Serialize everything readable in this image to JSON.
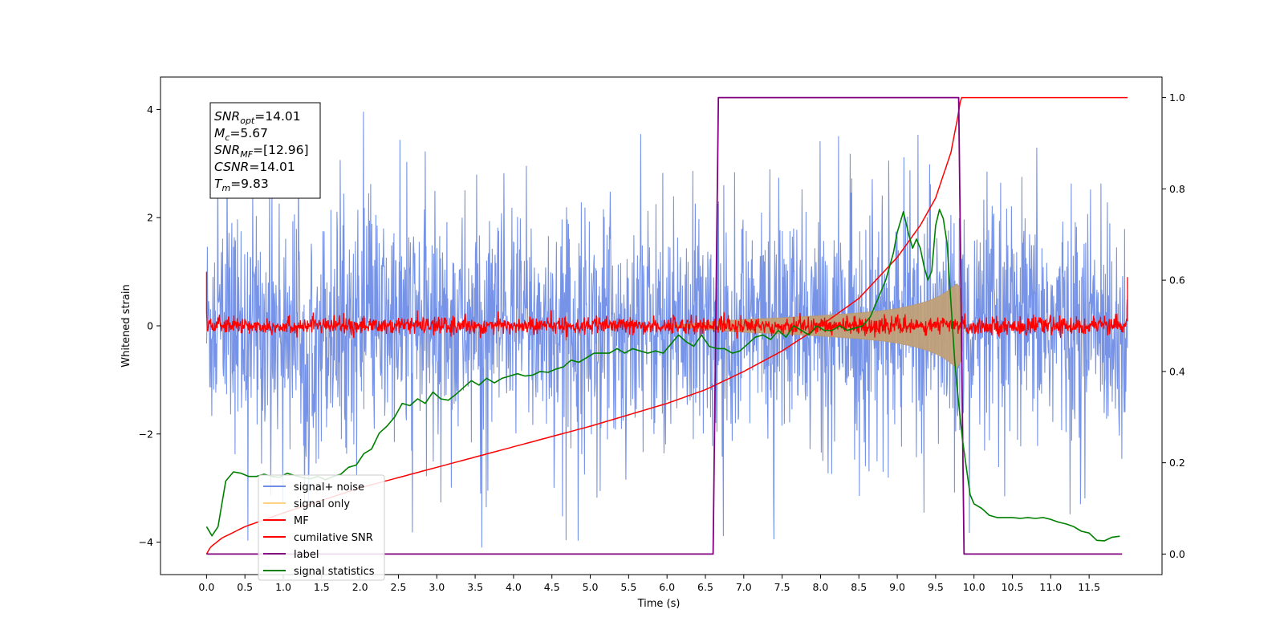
{
  "chart_data": {
    "type": "line",
    "xlabel": "Time (s)",
    "ylabel": "Whitened strain",
    "x_ticks": [
      0.0,
      0.5,
      1.0,
      1.5,
      2.0,
      2.5,
      3.0,
      3.5,
      4.0,
      4.5,
      5.0,
      5.5,
      6.0,
      6.5,
      7.0,
      7.5,
      8.0,
      8.5,
      9.0,
      9.5,
      10.0,
      10.5,
      11.0,
      11.5
    ],
    "x_tick_labels": [
      "0.0",
      "0.5",
      "1.0",
      "1.5",
      "2.0",
      "2.5",
      "3.0",
      "3.5",
      "4.0",
      "4.5",
      "5.0",
      "5.5",
      "6.0",
      "6.5",
      "7.0",
      "7.5",
      "8.0",
      "8.5",
      "9.0",
      "9.5",
      "10.0",
      "10.5",
      "11.0",
      "11.5"
    ],
    "xlim": [
      -0.6,
      12.45
    ],
    "ylim_left": [
      -4.6,
      4.6
    ],
    "y_ticks_left": [
      -4,
      -2,
      0,
      2,
      4
    ],
    "y_tick_labels_left": [
      "−4",
      "−2",
      "0",
      "2",
      "4"
    ],
    "ylim_right": [
      -0.045,
      1.045
    ],
    "y_ticks_right": [
      0.0,
      0.2,
      0.4,
      0.6,
      0.8,
      1.0
    ],
    "y_tick_labels_right": [
      "0.0",
      "0.2",
      "0.4",
      "0.6",
      "0.8",
      "1.0"
    ],
    "legend_position": "lower-left",
    "series": [
      {
        "name": "signal+ noise",
        "color": "#6f8de6",
        "axis": "left",
        "kind": "noise-band",
        "x_range": [
          0.0,
          12.0
        ],
        "spread": 1.05
      },
      {
        "name": "signal only",
        "color": "#ffd280",
        "axis": "left",
        "kind": "chirp-envelope",
        "envelope": {
          "x": [
            0.0,
            6.0,
            6.6,
            7.0,
            7.5,
            8.0,
            8.5,
            8.8,
            9.0,
            9.2,
            9.4,
            9.55,
            9.65,
            9.72,
            9.78,
            9.83,
            9.86
          ],
          "y": [
            0.0,
            0.0,
            0.08,
            0.12,
            0.15,
            0.19,
            0.24,
            0.28,
            0.32,
            0.38,
            0.46,
            0.55,
            0.64,
            0.72,
            0.78,
            0.65,
            0.0
          ]
        }
      },
      {
        "name": "MF",
        "color": "#ff0000",
        "axis": "left",
        "kind": "noise-band",
        "x_range": [
          0.0,
          12.0
        ],
        "spread": 0.08,
        "edges": {
          "start": 1.0,
          "end": 0.9
        }
      },
      {
        "name": "cumilative SNR",
        "color": "#ff0000",
        "axis": "right",
        "x": [
          0.0,
          0.05,
          0.2,
          0.5,
          1.0,
          2.0,
          3.0,
          4.0,
          5.0,
          6.0,
          6.5,
          7.0,
          7.5,
          8.0,
          8.5,
          9.0,
          9.3,
          9.5,
          9.6,
          9.7,
          9.78,
          9.83,
          9.9,
          12.0
        ],
        "y": [
          0.0,
          0.015,
          0.035,
          0.06,
          0.09,
          0.145,
          0.19,
          0.235,
          0.28,
          0.33,
          0.36,
          0.4,
          0.445,
          0.5,
          0.56,
          0.65,
          0.72,
          0.78,
          0.83,
          0.88,
          0.95,
          1.0,
          1.0,
          1.0
        ]
      },
      {
        "name": "label",
        "color": "#800080",
        "axis": "right",
        "x": [
          0.0,
          6.6,
          6.67,
          9.8,
          9.87,
          11.93
        ],
        "y": [
          0.0,
          0.0,
          1.0,
          1.0,
          0.0,
          0.0
        ]
      },
      {
        "name": "signal statistics",
        "color": "#008000",
        "axis": "right",
        "x": [
          0.0,
          0.07,
          0.15,
          0.25,
          0.35,
          0.45,
          0.55,
          0.65,
          0.75,
          0.85,
          0.95,
          1.05,
          1.15,
          1.25,
          1.35,
          1.45,
          1.55,
          1.65,
          1.75,
          1.85,
          1.95,
          2.05,
          2.15,
          2.25,
          2.35,
          2.45,
          2.55,
          2.65,
          2.75,
          2.85,
          2.95,
          3.05,
          3.15,
          3.25,
          3.35,
          3.45,
          3.55,
          3.65,
          3.75,
          3.85,
          3.95,
          4.05,
          4.15,
          4.25,
          4.35,
          4.45,
          4.55,
          4.65,
          4.75,
          4.85,
          4.95,
          5.05,
          5.15,
          5.25,
          5.35,
          5.45,
          5.55,
          5.65,
          5.75,
          5.85,
          5.95,
          6.05,
          6.15,
          6.25,
          6.35,
          6.45,
          6.55,
          6.65,
          6.75,
          6.85,
          6.95,
          7.05,
          7.15,
          7.25,
          7.35,
          7.45,
          7.55,
          7.65,
          7.75,
          7.85,
          7.95,
          8.05,
          8.15,
          8.25,
          8.35,
          8.45,
          8.55,
          8.65,
          8.75,
          8.85,
          8.95,
          9.0,
          9.08,
          9.15,
          9.2,
          9.25,
          9.3,
          9.35,
          9.4,
          9.45,
          9.5,
          9.55,
          9.6,
          9.65,
          9.7,
          9.75,
          9.8,
          9.85,
          9.9,
          9.95,
          10.0,
          10.1,
          10.2,
          10.3,
          10.4,
          10.5,
          10.6,
          10.7,
          10.8,
          10.9,
          11.0,
          11.1,
          11.2,
          11.3,
          11.4,
          11.5,
          11.6,
          11.7,
          11.8,
          11.9
        ],
        "y": [
          0.06,
          0.04,
          0.06,
          0.16,
          0.18,
          0.177,
          0.17,
          0.17,
          0.175,
          0.17,
          0.168,
          0.177,
          0.172,
          0.168,
          0.165,
          0.17,
          0.163,
          0.17,
          0.175,
          0.19,
          0.195,
          0.22,
          0.23,
          0.265,
          0.28,
          0.3,
          0.33,
          0.325,
          0.34,
          0.33,
          0.355,
          0.34,
          0.337,
          0.35,
          0.365,
          0.38,
          0.37,
          0.385,
          0.375,
          0.385,
          0.39,
          0.395,
          0.39,
          0.392,
          0.4,
          0.398,
          0.405,
          0.41,
          0.425,
          0.42,
          0.43,
          0.44,
          0.44,
          0.44,
          0.45,
          0.44,
          0.45,
          0.445,
          0.44,
          0.445,
          0.44,
          0.46,
          0.48,
          0.465,
          0.455,
          0.48,
          0.455,
          0.45,
          0.45,
          0.44,
          0.445,
          0.46,
          0.475,
          0.48,
          0.47,
          0.49,
          0.475,
          0.5,
          0.49,
          0.48,
          0.5,
          0.49,
          0.49,
          0.5,
          0.49,
          0.495,
          0.5,
          0.52,
          0.56,
          0.6,
          0.66,
          0.705,
          0.75,
          0.7,
          0.67,
          0.69,
          0.67,
          0.63,
          0.6,
          0.62,
          0.72,
          0.755,
          0.735,
          0.68,
          0.55,
          0.42,
          0.33,
          0.25,
          0.19,
          0.13,
          0.11,
          0.1,
          0.085,
          0.08,
          0.08,
          0.08,
          0.078,
          0.08,
          0.078,
          0.08,
          0.076,
          0.07,
          0.066,
          0.06,
          0.05,
          0.046,
          0.03,
          0.029,
          0.037,
          0.039
        ]
      }
    ],
    "annotations": [
      {
        "base": "SNR",
        "sub": "opt",
        "rest": "=14.01"
      },
      {
        "base": "M",
        "sub": "c",
        "rest": "=5.67"
      },
      {
        "base": "SNR",
        "sub": "MF",
        "rest": "=[12.96]"
      },
      {
        "base": "CSNR",
        "sub": "",
        "rest": "=14.01"
      },
      {
        "base": "T",
        "sub": "m",
        "rest": "=9.83"
      }
    ]
  }
}
